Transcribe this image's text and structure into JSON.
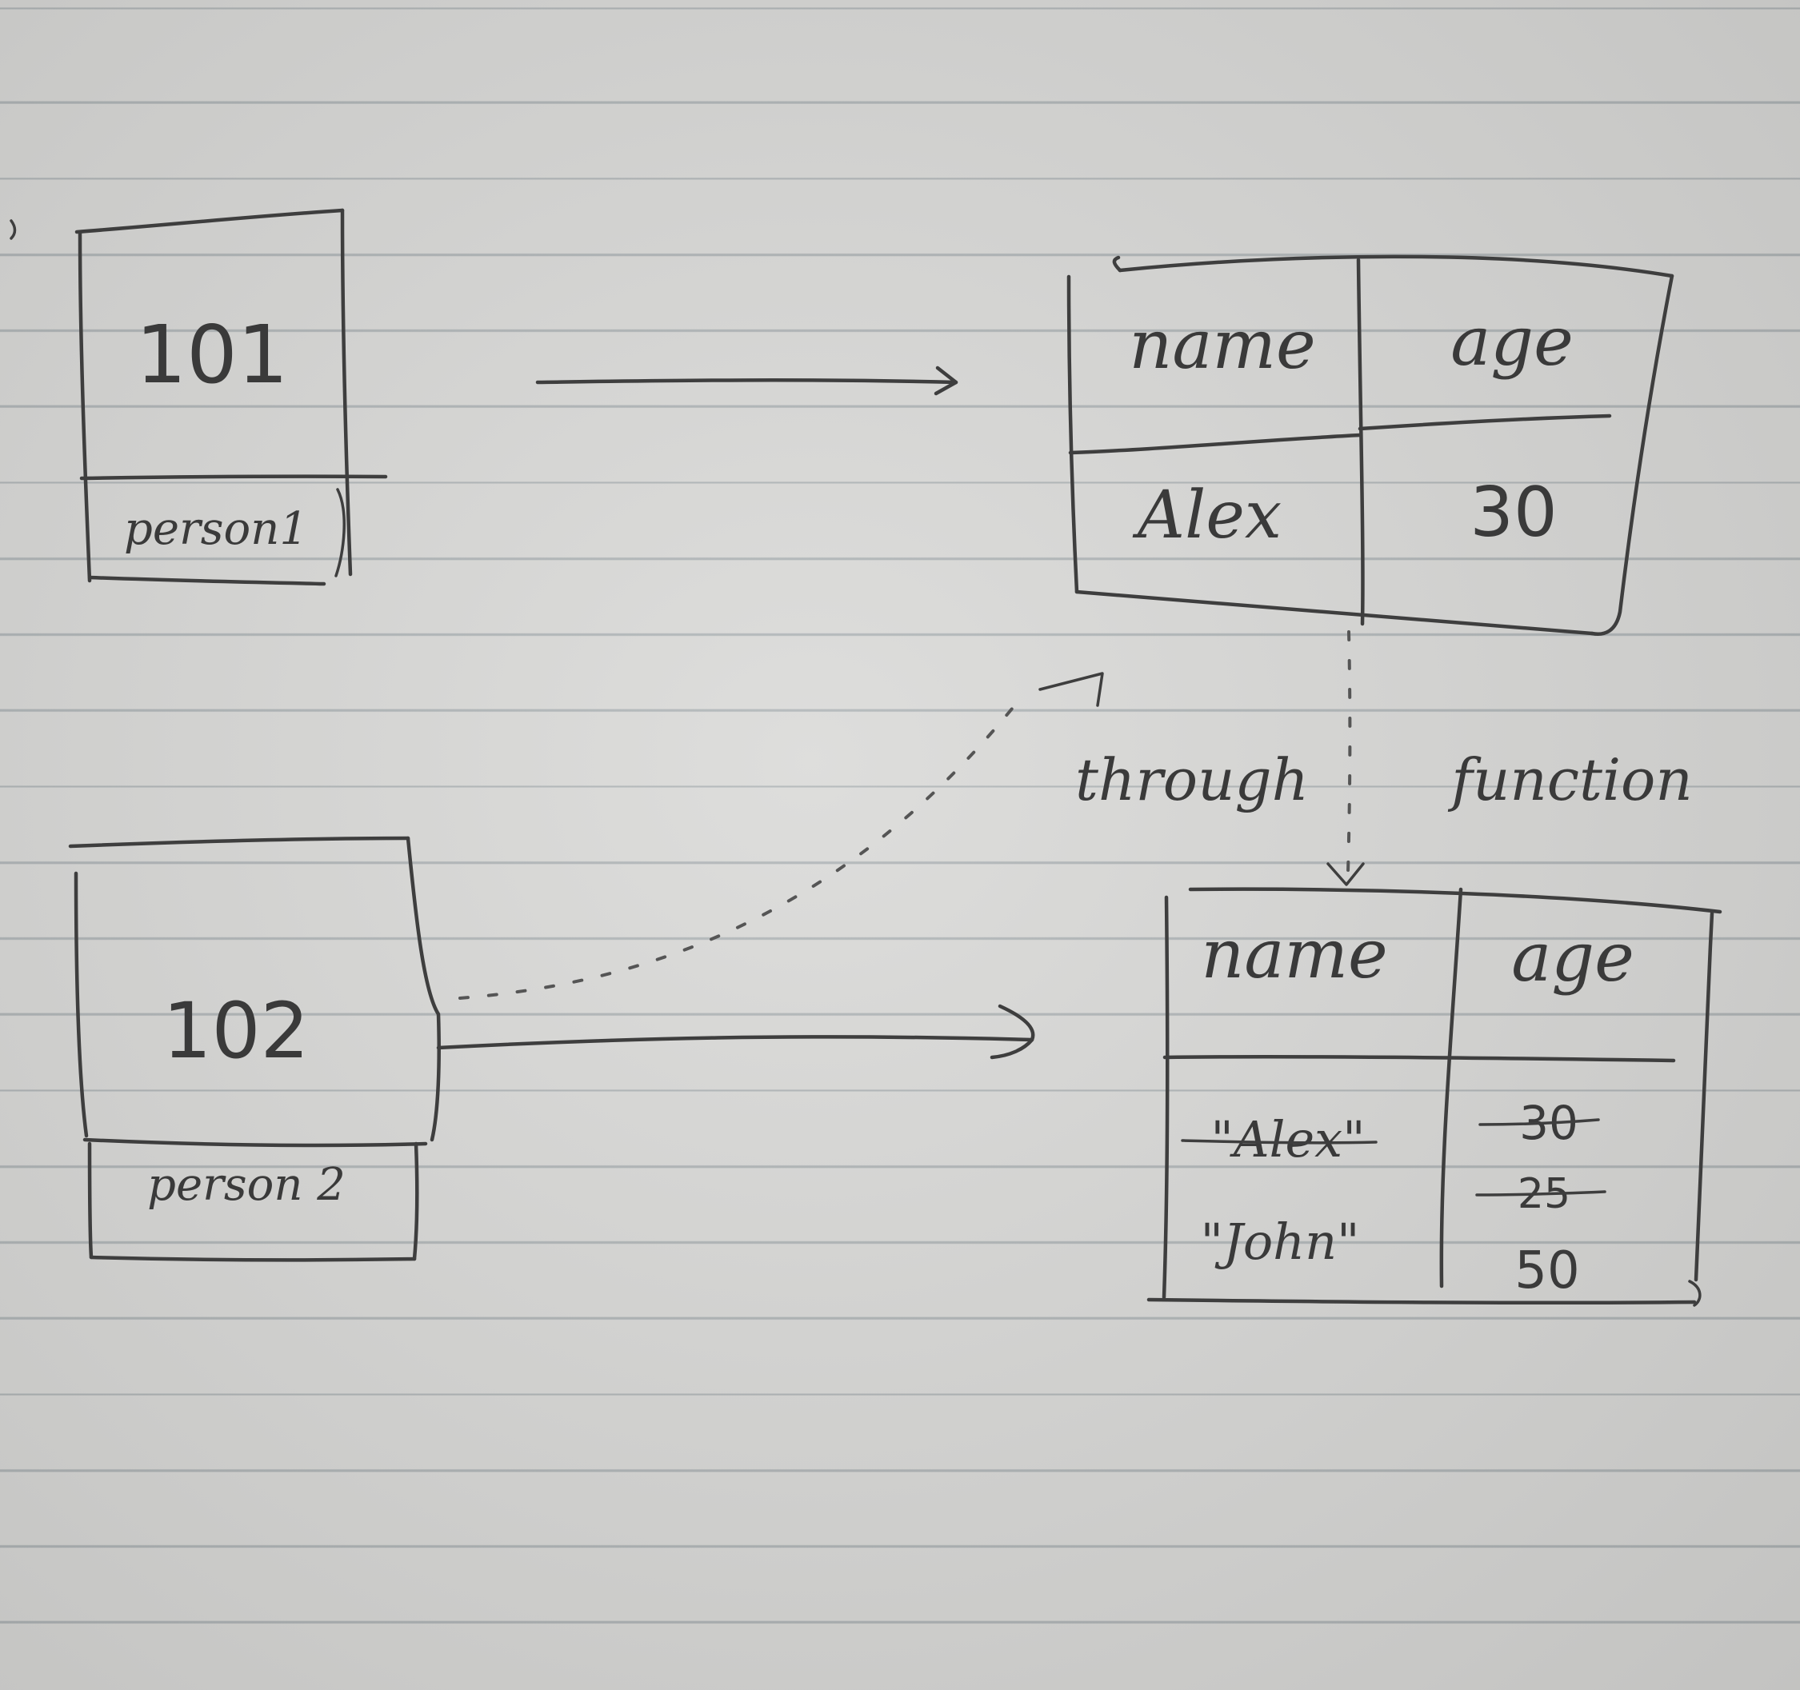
{
  "person1": {
    "address": "101",
    "label": "person1"
  },
  "person2": {
    "address": "102",
    "label": "person 2"
  },
  "object1": {
    "headers": [
      "name",
      "age"
    ],
    "values": [
      "Alex",
      "30"
    ]
  },
  "object2": {
    "headers": [
      "name",
      "age"
    ],
    "names": [
      {
        "text": "\"Alex\"",
        "struck": true
      },
      {
        "text": "\"John\"",
        "struck": false
      }
    ],
    "ages": [
      {
        "text": "30",
        "struck": true
      },
      {
        "text": "25",
        "struck": true
      },
      {
        "text": "50",
        "struck": false
      }
    ]
  },
  "annotation": {
    "word1": "through",
    "word2": "function"
  },
  "ink_color": "#3e3e3e"
}
